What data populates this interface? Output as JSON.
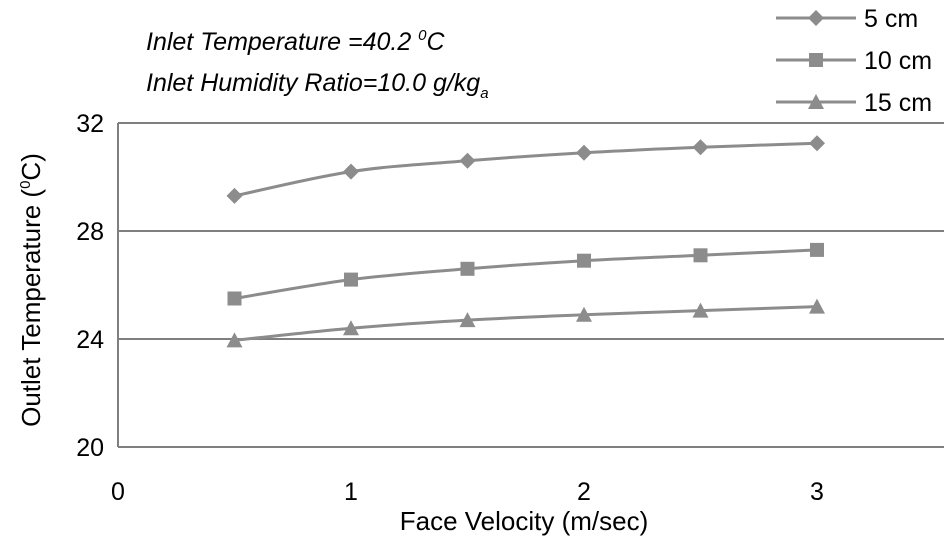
{
  "chart_data": {
    "type": "line",
    "title": "",
    "xlabel": "Face Velocity (m/sec)",
    "ylabel": {
      "prefix": "Outlet Temperature (",
      "sup": "0",
      "suffix": "C)"
    },
    "xlim": [
      0,
      3.5
    ],
    "ylim": [
      20,
      32
    ],
    "x_ticks": [
      "0",
      "1",
      "2",
      "3"
    ],
    "y_ticks": [
      "20",
      "24",
      "28",
      "32"
    ],
    "grid": "horizontal",
    "legend_position": "top-right",
    "annotations": {
      "temperature": {
        "text": "Inlet Temperature =40.2 ",
        "sup": "0",
        "tail": "C"
      },
      "humidity": {
        "text": "Inlet Humidity Ratio=10.0 g/kg",
        "sub": "a"
      }
    },
    "colors": {
      "series": "#8c8c8c",
      "grid": "#7f7f7f",
      "axis": "#7f7f7f"
    },
    "x": [
      0.5,
      1,
      1.5,
      2,
      2.5,
      3
    ],
    "series": [
      {
        "name": "5 cm",
        "marker": "diamond",
        "values": [
          29.3,
          30.2,
          30.6,
          30.9,
          31.1,
          31.25
        ]
      },
      {
        "name": "10 cm",
        "marker": "square",
        "values": [
          25.5,
          26.2,
          26.6,
          26.9,
          27.1,
          27.3
        ]
      },
      {
        "name": "15 cm",
        "marker": "triangle",
        "values": [
          23.95,
          24.4,
          24.7,
          24.9,
          25.05,
          25.2
        ]
      }
    ]
  }
}
